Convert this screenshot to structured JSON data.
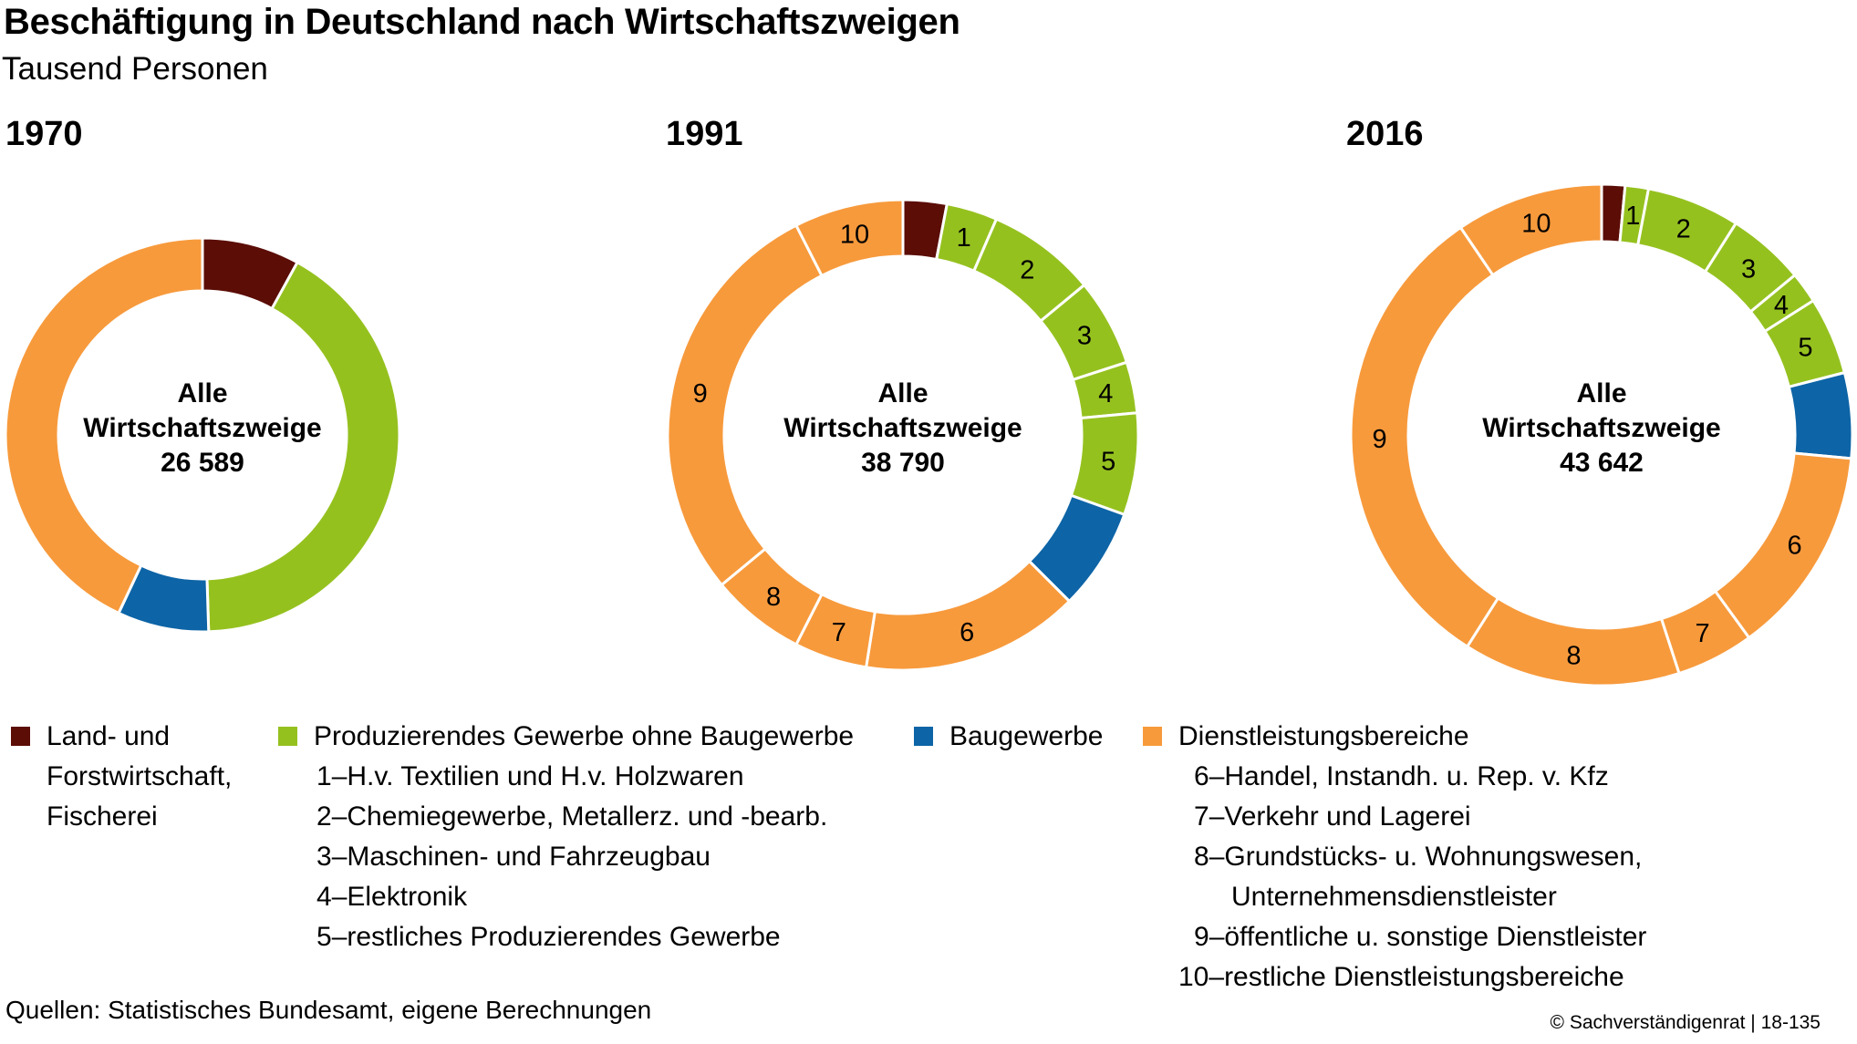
{
  "title": "Beschäftigung in Deutschland nach Wirtschaftszweigen",
  "subtitle": "Tausend Personen",
  "center_label_line1": "Alle",
  "center_label_line2": "Wirtschaftszweige",
  "colors": {
    "land": "#5b0d06",
    "produzierend": "#95c11f",
    "bau": "#0d64a6",
    "dienst": "#f79a3c"
  },
  "chart_data": [
    {
      "type": "donut",
      "year": "1970",
      "total": "26 589",
      "segments": [
        {
          "label": "",
          "group": "land",
          "value": 8.0
        },
        {
          "label": "",
          "group": "produzierend",
          "value": 41.5
        },
        {
          "label": "",
          "group": "bau",
          "value": 7.5
        },
        {
          "label": "",
          "group": "dienst",
          "value": 43.0
        }
      ]
    },
    {
      "type": "donut",
      "year": "1991",
      "total": "38 790",
      "segments": [
        {
          "label": "",
          "group": "land",
          "value": 3.0
        },
        {
          "label": "1",
          "group": "produzierend",
          "value": 3.5
        },
        {
          "label": "2",
          "group": "produzierend",
          "value": 7.5
        },
        {
          "label": "3",
          "group": "produzierend",
          "value": 6.0
        },
        {
          "label": "4",
          "group": "produzierend",
          "value": 3.5
        },
        {
          "label": "5",
          "group": "produzierend",
          "value": 7.0
        },
        {
          "label": "",
          "group": "bau",
          "value": 7.0
        },
        {
          "label": "6",
          "group": "dienst",
          "value": 15.0
        },
        {
          "label": "7",
          "group": "dienst",
          "value": 5.0
        },
        {
          "label": "8",
          "group": "dienst",
          "value": 6.5
        },
        {
          "label": "9",
          "group": "dienst",
          "value": 28.5
        },
        {
          "label": "10",
          "group": "dienst",
          "value": 7.5
        }
      ]
    },
    {
      "type": "donut",
      "year": "2016",
      "total": "43 642",
      "segments": [
        {
          "label": "",
          "group": "land",
          "value": 1.5
        },
        {
          "label": "1",
          "group": "produzierend",
          "value": 1.5
        },
        {
          "label": "2",
          "group": "produzierend",
          "value": 6.0
        },
        {
          "label": "3",
          "group": "produzierend",
          "value": 5.0
        },
        {
          "label": "4",
          "group": "produzierend",
          "value": 2.0
        },
        {
          "label": "5",
          "group": "produzierend",
          "value": 5.0
        },
        {
          "label": "",
          "group": "bau",
          "value": 5.5
        },
        {
          "label": "6",
          "group": "dienst",
          "value": 13.5
        },
        {
          "label": "7",
          "group": "dienst",
          "value": 5.0
        },
        {
          "label": "8",
          "group": "dienst",
          "value": 14.0
        },
        {
          "label": "9",
          "group": "dienst",
          "value": 31.5
        },
        {
          "label": "10",
          "group": "dienst",
          "value": 9.5
        }
      ]
    }
  ],
  "legend": {
    "land": "Land- und Forstwirtschaft, Fischerei",
    "land_lines": [
      "Land- und",
      "Forstwirtschaft,",
      "Fischerei"
    ],
    "produzierend": "Produzierendes Gewerbe ohne Baugewerbe",
    "produzierend_items": [
      {
        "num": "1",
        "text": "H.v. Textilien und H.v. Holzwaren"
      },
      {
        "num": "2",
        "text": "Chemiegewerbe, Metallerz. und -bearb."
      },
      {
        "num": "3",
        "text": "Maschinen- und Fahrzeugbau"
      },
      {
        "num": "4",
        "text": "Elektronik"
      },
      {
        "num": "5",
        "text": "restliches Produzierendes Gewerbe"
      }
    ],
    "bau": "Baugewerbe",
    "dienst": "Dienstleistungsbereiche",
    "dienst_items": [
      {
        "num": "6",
        "text": "Handel, Instandh. u. Rep. v. Kfz"
      },
      {
        "num": "7",
        "text": "Verkehr und Lagerei"
      },
      {
        "num": "8",
        "text": "Grundstücks- u. Wohnungswesen,",
        "text2": "Unternehmensdienstleister"
      },
      {
        "num": "9",
        "text": "öffentliche u. sonstige Dienstleister"
      },
      {
        "num": "10",
        "text": "restliche Dienstleistungsbereiche"
      }
    ],
    "dash": "–"
  },
  "source": "Quellen: Statistisches Bundesamt, eigene Berechnungen",
  "copyright": "© Sachverständigenrat | 18-135"
}
